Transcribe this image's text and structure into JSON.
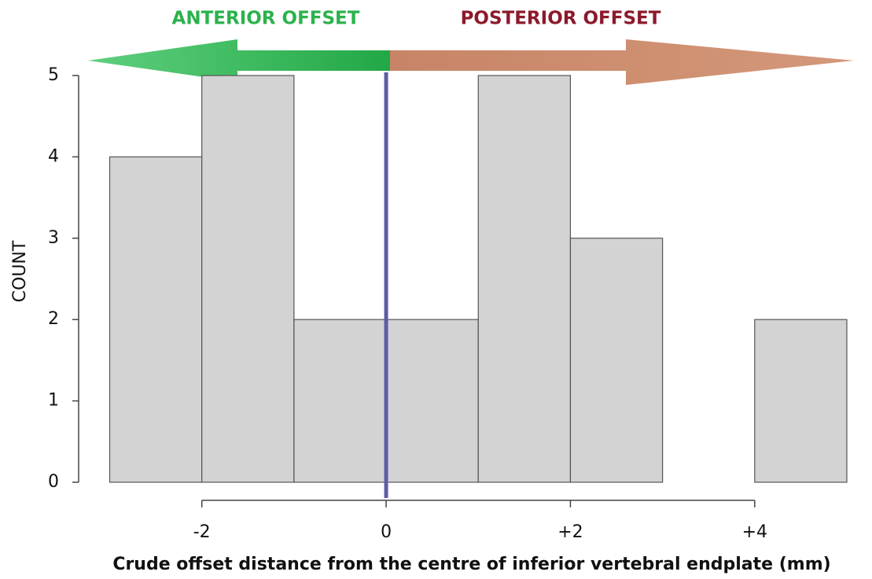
{
  "chart_data": {
    "type": "histogram",
    "xlabel": "Crude offset distance from the centre of inferior vertebral endplate (mm)",
    "ylabel": "COUNT",
    "bins": [
      -3,
      -2,
      -1,
      0,
      1,
      2,
      3,
      4,
      5
    ],
    "values": [
      4,
      5,
      2,
      2,
      5,
      3,
      0,
      2
    ],
    "color": "#d3d3d3",
    "xlim": [
      -3,
      5
    ],
    "xticks": [
      -2,
      0,
      {
        "value": 2,
        "label": "+2"
      },
      {
        "value": 4,
        "label": "+4"
      }
    ],
    "ylim": [
      0,
      5
    ],
    "yticks": [
      0,
      1,
      2,
      3,
      4,
      5
    ],
    "reference_line": {
      "x": 0,
      "color": "#5b5ea6"
    },
    "annotations": [
      {
        "text": "ANTERIOR OFFSET",
        "color": "#2bb24c"
      },
      {
        "text": "POSTERIOR OFFSET",
        "color": "#8b1a2b"
      }
    ]
  }
}
